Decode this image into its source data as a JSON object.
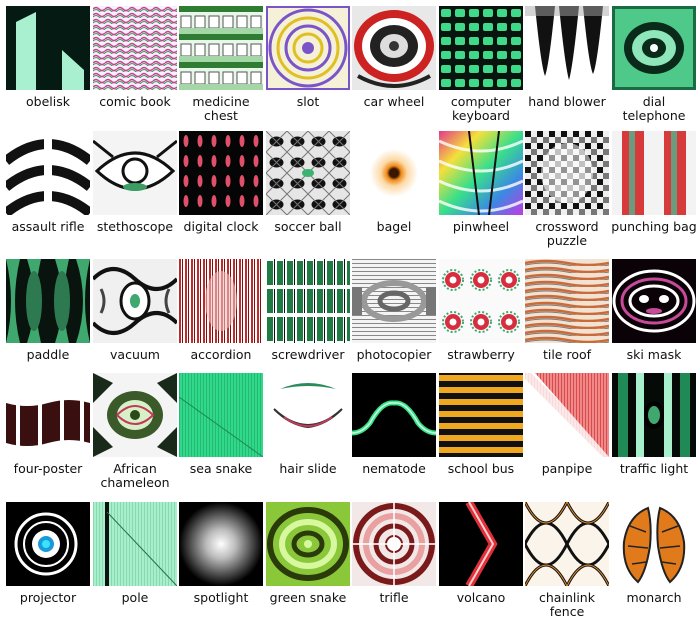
{
  "grid": {
    "items": [
      {
        "label": "obelisk",
        "icon": "obelisk-pattern"
      },
      {
        "label": "comic book",
        "icon": "comic-book-pattern"
      },
      {
        "label": "medicine\nchest",
        "icon": "medicine-chest-pattern"
      },
      {
        "label": "slot",
        "icon": "slot-pattern"
      },
      {
        "label": "car wheel",
        "icon": "car-wheel-pattern"
      },
      {
        "label": "computer\nkeyboard",
        "icon": "computer-keyboard-pattern"
      },
      {
        "label": "hand blower",
        "icon": "hand-blower-pattern"
      },
      {
        "label": "dial\ntelephone",
        "icon": "dial-telephone-pattern"
      },
      {
        "label": "assault rifle",
        "icon": "assault-rifle-pattern"
      },
      {
        "label": "stethoscope",
        "icon": "stethoscope-pattern"
      },
      {
        "label": "digital clock",
        "icon": "digital-clock-pattern"
      },
      {
        "label": "soccer ball",
        "icon": "soccer-ball-pattern"
      },
      {
        "label": "bagel",
        "icon": "bagel-pattern"
      },
      {
        "label": "pinwheel",
        "icon": "pinwheel-pattern"
      },
      {
        "label": "crossword\npuzzle",
        "icon": "crossword-puzzle-pattern"
      },
      {
        "label": "punching bag",
        "icon": "punching-bag-pattern"
      },
      {
        "label": "paddle",
        "icon": "paddle-pattern"
      },
      {
        "label": "vacuum",
        "icon": "vacuum-pattern"
      },
      {
        "label": "accordion",
        "icon": "accordion-pattern"
      },
      {
        "label": "screwdriver",
        "icon": "screwdriver-pattern"
      },
      {
        "label": "photocopier",
        "icon": "photocopier-pattern"
      },
      {
        "label": "strawberry",
        "icon": "strawberry-pattern"
      },
      {
        "label": "tile roof",
        "icon": "tile-roof-pattern"
      },
      {
        "label": "ski mask",
        "icon": "ski-mask-pattern"
      },
      {
        "label": "four-poster",
        "icon": "four-poster-pattern"
      },
      {
        "label": "African\nchameleon",
        "icon": "african-chameleon-pattern"
      },
      {
        "label": "sea snake",
        "icon": "sea-snake-pattern"
      },
      {
        "label": "hair slide",
        "icon": "hair-slide-pattern"
      },
      {
        "label": "nematode",
        "icon": "nematode-pattern"
      },
      {
        "label": "school bus",
        "icon": "school-bus-pattern"
      },
      {
        "label": "panpipe",
        "icon": "panpipe-pattern"
      },
      {
        "label": "traffic light",
        "icon": "traffic-light-pattern"
      },
      {
        "label": "projector",
        "icon": "projector-pattern"
      },
      {
        "label": "pole",
        "icon": "pole-pattern"
      },
      {
        "label": "spotlight",
        "icon": "spotlight-pattern"
      },
      {
        "label": "green snake",
        "icon": "green-snake-pattern"
      },
      {
        "label": "trifle",
        "icon": "trifle-pattern"
      },
      {
        "label": "volcano",
        "icon": "volcano-pattern"
      },
      {
        "label": "chainlink\nfence",
        "icon": "chainlink-fence-pattern"
      },
      {
        "label": "monarch",
        "icon": "monarch-pattern"
      }
    ]
  }
}
